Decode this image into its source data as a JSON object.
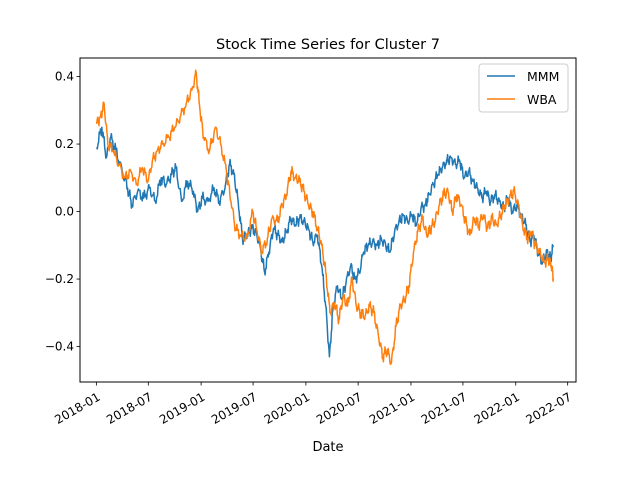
{
  "chart_data": {
    "type": "line",
    "title": "Stock Time Series for Cluster 7",
    "xlabel": "Date",
    "ylabel": "",
    "xlim": [
      "2017-11-05",
      "2022-07-30"
    ],
    "ylim": [
      -0.505,
      0.455
    ],
    "x_ticks": [
      "2018-01",
      "2018-07",
      "2019-01",
      "2019-07",
      "2020-01",
      "2020-07",
      "2021-01",
      "2021-07",
      "2022-01",
      "2022-07"
    ],
    "y_ticks": [
      -0.4,
      -0.2,
      0.0,
      0.2,
      0.4
    ],
    "y_tick_labels": [
      "−0.4",
      "−0.2",
      "0.0",
      "0.2",
      "0.4"
    ],
    "legend": "top-right",
    "grid": false,
    "series": [
      {
        "name": "MMM",
        "color": "#1f77b4",
        "points": [
          [
            "2018-01-02",
            0.19
          ],
          [
            "2018-01-20",
            0.25
          ],
          [
            "2018-02-05",
            0.16
          ],
          [
            "2018-02-20",
            0.22
          ],
          [
            "2018-03-10",
            0.18
          ],
          [
            "2018-04-01",
            0.12
          ],
          [
            "2018-04-20",
            0.07
          ],
          [
            "2018-05-05",
            0.02
          ],
          [
            "2018-05-25",
            0.06
          ],
          [
            "2018-06-15",
            0.04
          ],
          [
            "2018-07-05",
            0.07
          ],
          [
            "2018-07-25",
            0.03
          ],
          [
            "2018-08-15",
            0.1
          ],
          [
            "2018-09-01",
            0.08
          ],
          [
            "2018-09-20",
            0.11
          ],
          [
            "2018-10-05",
            0.13
          ],
          [
            "2018-10-25",
            0.03
          ],
          [
            "2018-11-15",
            0.09
          ],
          [
            "2018-12-05",
            0.06
          ],
          [
            "2018-12-20",
            0.0
          ],
          [
            "2019-01-05",
            0.04
          ],
          [
            "2019-01-25",
            0.03
          ],
          [
            "2019-02-15",
            0.07
          ],
          [
            "2019-03-05",
            0.03
          ],
          [
            "2019-03-25",
            0.07
          ],
          [
            "2019-04-10",
            0.14
          ],
          [
            "2019-04-25",
            0.11
          ],
          [
            "2019-05-10",
            0.03
          ],
          [
            "2019-05-25",
            -0.08
          ],
          [
            "2019-06-10",
            -0.07
          ],
          [
            "2019-06-25",
            -0.05
          ],
          [
            "2019-07-10",
            -0.06
          ],
          [
            "2019-07-25",
            -0.1
          ],
          [
            "2019-08-10",
            -0.18
          ],
          [
            "2019-08-25",
            -0.12
          ],
          [
            "2019-09-10",
            -0.05
          ],
          [
            "2019-09-25",
            -0.07
          ],
          [
            "2019-10-10",
            -0.09
          ],
          [
            "2019-10-25",
            -0.06
          ],
          [
            "2019-11-10",
            -0.02
          ],
          [
            "2019-11-25",
            -0.04
          ],
          [
            "2019-12-10",
            -0.02
          ],
          [
            "2019-12-25",
            -0.03
          ],
          [
            "2020-01-10",
            -0.05
          ],
          [
            "2020-01-25",
            -0.09
          ],
          [
            "2020-02-10",
            -0.07
          ],
          [
            "2020-02-25",
            -0.16
          ],
          [
            "2020-03-10",
            -0.28
          ],
          [
            "2020-03-23",
            -0.43
          ],
          [
            "2020-04-05",
            -0.28
          ],
          [
            "2020-04-20",
            -0.22
          ],
          [
            "2020-05-05",
            -0.26
          ],
          [
            "2020-05-20",
            -0.21
          ],
          [
            "2020-06-05",
            -0.16
          ],
          [
            "2020-06-20",
            -0.2
          ],
          [
            "2020-07-05",
            -0.18
          ],
          [
            "2020-07-20",
            -0.12
          ],
          [
            "2020-08-05",
            -0.1
          ],
          [
            "2020-08-20",
            -0.09
          ],
          [
            "2020-09-05",
            -0.1
          ],
          [
            "2020-09-20",
            -0.08
          ],
          [
            "2020-10-05",
            -0.1
          ],
          [
            "2020-10-20",
            -0.12
          ],
          [
            "2020-11-05",
            -0.06
          ],
          [
            "2020-11-20",
            -0.03
          ],
          [
            "2020-12-05",
            -0.01
          ],
          [
            "2020-12-20",
            -0.03
          ],
          [
            "2021-01-05",
            -0.01
          ],
          [
            "2021-01-20",
            -0.04
          ],
          [
            "2021-02-05",
            0.01
          ],
          [
            "2021-02-20",
            0.02
          ],
          [
            "2021-03-05",
            0.05
          ],
          [
            "2021-03-20",
            0.08
          ],
          [
            "2021-04-05",
            0.11
          ],
          [
            "2021-04-20",
            0.13
          ],
          [
            "2021-05-05",
            0.15
          ],
          [
            "2021-05-20",
            0.16
          ],
          [
            "2021-06-05",
            0.14
          ],
          [
            "2021-06-20",
            0.15
          ],
          [
            "2021-07-05",
            0.1
          ],
          [
            "2021-07-20",
            0.12
          ],
          [
            "2021-08-05",
            0.09
          ],
          [
            "2021-08-20",
            0.07
          ],
          [
            "2021-09-05",
            0.04
          ],
          [
            "2021-09-20",
            0.06
          ],
          [
            "2021-10-05",
            0.03
          ],
          [
            "2021-10-20",
            0.05
          ],
          [
            "2021-11-05",
            0.03
          ],
          [
            "2021-11-20",
            0.01
          ],
          [
            "2021-12-05",
            0.04
          ],
          [
            "2021-12-20",
            0.0
          ],
          [
            "2022-01-05",
            0.02
          ],
          [
            "2022-01-20",
            -0.01
          ],
          [
            "2022-02-05",
            -0.04
          ],
          [
            "2022-02-20",
            -0.09
          ],
          [
            "2022-03-05",
            -0.07
          ],
          [
            "2022-03-20",
            -0.12
          ],
          [
            "2022-04-05",
            -0.15
          ],
          [
            "2022-04-20",
            -0.12
          ],
          [
            "2022-05-02",
            -0.14
          ],
          [
            "2022-05-13",
            -0.1
          ]
        ]
      },
      {
        "name": "WBA",
        "color": "#ff7f0e",
        "points": [
          [
            "2018-01-02",
            0.26
          ],
          [
            "2018-01-15",
            0.28
          ],
          [
            "2018-01-28",
            0.32
          ],
          [
            "2018-02-10",
            0.2
          ],
          [
            "2018-03-01",
            0.18
          ],
          [
            "2018-03-20",
            0.14
          ],
          [
            "2018-04-10",
            0.1
          ],
          [
            "2018-05-01",
            0.12
          ],
          [
            "2018-05-20",
            0.08
          ],
          [
            "2018-06-10",
            0.13
          ],
          [
            "2018-06-30",
            0.09
          ],
          [
            "2018-07-15",
            0.15
          ],
          [
            "2018-08-01",
            0.18
          ],
          [
            "2018-08-20",
            0.2
          ],
          [
            "2018-09-10",
            0.22
          ],
          [
            "2018-10-01",
            0.25
          ],
          [
            "2018-10-20",
            0.28
          ],
          [
            "2018-11-10",
            0.32
          ],
          [
            "2018-11-30",
            0.36
          ],
          [
            "2018-12-15",
            0.41
          ],
          [
            "2018-12-28",
            0.3
          ],
          [
            "2019-01-10",
            0.22
          ],
          [
            "2019-01-30",
            0.18
          ],
          [
            "2019-02-20",
            0.25
          ],
          [
            "2019-03-10",
            0.2
          ],
          [
            "2019-03-30",
            0.12
          ],
          [
            "2019-04-15",
            0.03
          ],
          [
            "2019-05-01",
            -0.05
          ],
          [
            "2019-05-20",
            -0.07
          ],
          [
            "2019-06-10",
            -0.08
          ],
          [
            "2019-06-30",
            0.0
          ],
          [
            "2019-07-15",
            -0.06
          ],
          [
            "2019-08-01",
            -0.12
          ],
          [
            "2019-08-20",
            -0.08
          ],
          [
            "2019-09-05",
            -0.02
          ],
          [
            "2019-09-25",
            -0.03
          ],
          [
            "2019-10-10",
            0.02
          ],
          [
            "2019-10-25",
            0.05
          ],
          [
            "2019-11-10",
            0.12
          ],
          [
            "2019-11-25",
            0.1
          ],
          [
            "2019-12-10",
            0.09
          ],
          [
            "2019-12-25",
            0.06
          ],
          [
            "2020-01-10",
            0.02
          ],
          [
            "2020-01-25",
            0.0
          ],
          [
            "2020-02-10",
            -0.05
          ],
          [
            "2020-02-25",
            -0.1
          ],
          [
            "2020-03-10",
            -0.18
          ],
          [
            "2020-03-25",
            -0.3
          ],
          [
            "2020-04-10",
            -0.27
          ],
          [
            "2020-04-25",
            -0.32
          ],
          [
            "2020-05-10",
            -0.25
          ],
          [
            "2020-05-25",
            -0.28
          ],
          [
            "2020-06-10",
            -0.2
          ],
          [
            "2020-06-25",
            -0.28
          ],
          [
            "2020-07-10",
            -0.3
          ],
          [
            "2020-07-25",
            -0.31
          ],
          [
            "2020-08-10",
            -0.28
          ],
          [
            "2020-08-25",
            -0.3
          ],
          [
            "2020-09-10",
            -0.37
          ],
          [
            "2020-09-25",
            -0.43
          ],
          [
            "2020-10-10",
            -0.41
          ],
          [
            "2020-10-25",
            -0.45
          ],
          [
            "2020-11-10",
            -0.34
          ],
          [
            "2020-11-25",
            -0.28
          ],
          [
            "2020-12-10",
            -0.26
          ],
          [
            "2020-12-25",
            -0.22
          ],
          [
            "2021-01-10",
            -0.12
          ],
          [
            "2021-01-25",
            -0.06
          ],
          [
            "2021-02-10",
            -0.02
          ],
          [
            "2021-02-25",
            -0.07
          ],
          [
            "2021-03-10",
            -0.05
          ],
          [
            "2021-03-25",
            -0.03
          ],
          [
            "2021-04-10",
            0.02
          ],
          [
            "2021-04-25",
            0.05
          ],
          [
            "2021-05-10",
            0.06
          ],
          [
            "2021-05-25",
            0.0
          ],
          [
            "2021-06-10",
            0.05
          ],
          [
            "2021-06-25",
            0.02
          ],
          [
            "2021-07-10",
            -0.03
          ],
          [
            "2021-07-25",
            -0.07
          ],
          [
            "2021-08-10",
            -0.02
          ],
          [
            "2021-08-25",
            -0.04
          ],
          [
            "2021-09-10",
            -0.01
          ],
          [
            "2021-09-25",
            -0.05
          ],
          [
            "2021-10-10",
            -0.02
          ],
          [
            "2021-10-25",
            -0.04
          ],
          [
            "2021-11-10",
            -0.01
          ],
          [
            "2021-11-25",
            0.02
          ],
          [
            "2021-12-10",
            0.04
          ],
          [
            "2021-12-25",
            0.06
          ],
          [
            "2022-01-10",
            0.02
          ],
          [
            "2022-01-25",
            -0.04
          ],
          [
            "2022-02-10",
            -0.08
          ],
          [
            "2022-02-25",
            -0.06
          ],
          [
            "2022-03-10",
            -0.1
          ],
          [
            "2022-03-25",
            -0.12
          ],
          [
            "2022-04-10",
            -0.15
          ],
          [
            "2022-04-25",
            -0.14
          ],
          [
            "2022-05-05",
            -0.16
          ],
          [
            "2022-05-13",
            -0.2
          ]
        ]
      }
    ]
  }
}
